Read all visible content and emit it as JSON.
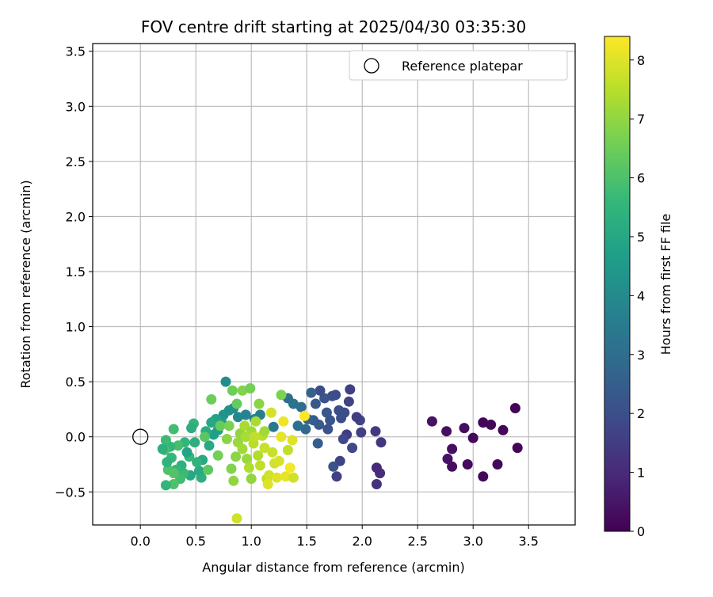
{
  "chart_data": {
    "type": "scatter",
    "title": "FOV centre drift starting at 2025/04/30 03:35:30",
    "xlabel": "Angular distance from reference (arcmin)",
    "ylabel": "Rotation from reference (arcmin)",
    "xlim": [
      -0.43,
      3.92
    ],
    "ylim": [
      -0.8,
      3.57
    ],
    "xticks": [
      "0.0",
      "0.5",
      "1.0",
      "1.5",
      "2.0",
      "2.5",
      "3.0",
      "3.5"
    ],
    "yticks": [
      "−0.5",
      "0.0",
      "0.5",
      "1.0",
      "1.5",
      "2.0",
      "2.5",
      "3.0",
      "3.5"
    ],
    "grid": true,
    "legend": {
      "position": "top-right",
      "label": "Reference platepar"
    },
    "reference_point": {
      "x": 0.0,
      "y": 0.0
    },
    "colorbar": {
      "label": "Hours from first FF file",
      "colormap": "viridis",
      "range": [
        0,
        8.4
      ],
      "ticks": [
        "0",
        "1",
        "2",
        "3",
        "4",
        "5",
        "6",
        "7",
        "8"
      ]
    },
    "points": [
      [
        3.38,
        0.26,
        0.1
      ],
      [
        3.4,
        -0.1,
        0.1
      ],
      [
        3.27,
        0.06,
        0.15
      ],
      [
        3.22,
        -0.25,
        0.2
      ],
      [
        3.16,
        0.11,
        0.15
      ],
      [
        3.09,
        0.13,
        0.1
      ],
      [
        3.09,
        -0.36,
        0.15
      ],
      [
        3.0,
        -0.01,
        0.2
      ],
      [
        2.95,
        -0.25,
        0.25
      ],
      [
        2.92,
        0.08,
        0.3
      ],
      [
        2.81,
        -0.11,
        0.35
      ],
      [
        2.81,
        -0.27,
        0.3
      ],
      [
        2.77,
        -0.2,
        0.4
      ],
      [
        2.76,
        0.05,
        0.35
      ],
      [
        2.63,
        0.14,
        0.4
      ],
      [
        2.17,
        -0.05,
        1.3
      ],
      [
        2.16,
        -0.33,
        1.1
      ],
      [
        2.13,
        -0.28,
        1.0
      ],
      [
        2.12,
        0.05,
        1.4
      ],
      [
        2.13,
        -0.43,
        1.2
      ],
      [
        1.99,
        0.04,
        1.6
      ],
      [
        1.98,
        0.15,
        1.7
      ],
      [
        1.95,
        0.18,
        1.5
      ],
      [
        1.91,
        -0.1,
        1.8
      ],
      [
        1.89,
        0.43,
        1.6
      ],
      [
        1.88,
        0.32,
        1.7
      ],
      [
        1.86,
        0.02,
        1.5
      ],
      [
        1.84,
        0.22,
        1.9
      ],
      [
        1.83,
        -0.02,
        1.8
      ],
      [
        1.81,
        0.17,
        2.0
      ],
      [
        1.8,
        -0.22,
        1.7
      ],
      [
        1.79,
        0.24,
        2.0
      ],
      [
        1.77,
        -0.36,
        1.6
      ],
      [
        1.76,
        0.38,
        1.9
      ],
      [
        1.74,
        -0.27,
        2.1
      ],
      [
        1.73,
        0.37,
        2.0
      ],
      [
        1.71,
        0.15,
        2.2
      ],
      [
        1.69,
        0.07,
        2.1
      ],
      [
        1.68,
        0.22,
        2.3
      ],
      [
        1.66,
        0.35,
        2.2
      ],
      [
        1.62,
        0.42,
        2.0
      ],
      [
        1.61,
        0.11,
        2.4
      ],
      [
        1.6,
        -0.06,
        2.5
      ],
      [
        1.58,
        0.3,
        2.3
      ],
      [
        1.56,
        0.15,
        2.4
      ],
      [
        1.54,
        0.4,
        2.6
      ],
      [
        1.51,
        0.16,
        2.7
      ],
      [
        1.49,
        0.07,
        2.8
      ],
      [
        1.45,
        0.27,
        3.0
      ],
      [
        1.42,
        0.1,
        3.1
      ],
      [
        1.38,
        0.3,
        3.2
      ],
      [
        1.33,
        0.35,
        3.0
      ],
      [
        1.2,
        0.09,
        3.4
      ],
      [
        1.08,
        0.2,
        3.6
      ],
      [
        1.03,
        0.16,
        3.7
      ],
      [
        0.95,
        0.2,
        3.8
      ],
      [
        0.88,
        0.18,
        3.9
      ],
      [
        0.84,
        0.26,
        4.0
      ],
      [
        0.8,
        0.24,
        4.2
      ],
      [
        0.77,
        0.5,
        4.1
      ],
      [
        0.75,
        0.2,
        4.3
      ],
      [
        0.73,
        0.14,
        4.5
      ],
      [
        0.7,
        0.06,
        4.6
      ],
      [
        0.68,
        0.16,
        4.8
      ],
      [
        0.66,
        0.02,
        4.7
      ],
      [
        0.64,
        0.13,
        5.0
      ],
      [
        0.62,
        -0.08,
        5.1
      ],
      [
        0.59,
        0.05,
        5.2
      ],
      [
        0.56,
        -0.21,
        5.0
      ],
      [
        0.55,
        -0.37,
        5.3
      ],
      [
        0.53,
        -0.31,
        5.1
      ],
      [
        0.51,
        -0.23,
        5.4
      ],
      [
        0.49,
        -0.05,
        5.3
      ],
      [
        0.48,
        0.12,
        5.5
      ],
      [
        0.46,
        0.08,
        5.2
      ],
      [
        0.45,
        -0.35,
        5.0
      ],
      [
        0.44,
        -0.18,
        5.6
      ],
      [
        0.42,
        -0.14,
        4.9
      ],
      [
        0.4,
        -0.05,
        5.5
      ],
      [
        0.39,
        -0.33,
        5.7
      ],
      [
        0.37,
        -0.26,
        5.4
      ],
      [
        0.36,
        -0.38,
        5.8
      ],
      [
        0.34,
        -0.08,
        5.9
      ],
      [
        0.32,
        -0.3,
        5.6
      ],
      [
        0.3,
        -0.43,
        6.0
      ],
      [
        0.3,
        0.07,
        5.8
      ],
      [
        0.28,
        -0.19,
        5.6
      ],
      [
        0.27,
        -0.09,
        5.5
      ],
      [
        0.25,
        -0.3,
        6.0
      ],
      [
        0.24,
        -0.23,
        5.4
      ],
      [
        0.23,
        -0.03,
        5.7
      ],
      [
        0.23,
        -0.44,
        5.5
      ],
      [
        0.22,
        -0.12,
        5.9
      ],
      [
        0.2,
        -0.11,
        5.3
      ],
      [
        0.3,
        -0.33,
        6.1
      ],
      [
        0.58,
        0.0,
        6.2
      ],
      [
        0.61,
        -0.3,
        6.3
      ],
      [
        0.64,
        0.34,
        6.5
      ],
      [
        0.7,
        -0.17,
        6.6
      ],
      [
        0.72,
        0.1,
        6.4
      ],
      [
        0.8,
        0.1,
        6.7
      ],
      [
        0.83,
        0.42,
        6.5
      ],
      [
        0.87,
        0.3,
        6.4
      ],
      [
        0.92,
        0.42,
        6.8
      ],
      [
        0.99,
        0.44,
        6.6
      ],
      [
        1.07,
        0.3,
        6.9
      ],
      [
        1.27,
        0.38,
        6.7
      ],
      [
        0.82,
        -0.29,
        6.8
      ],
      [
        0.84,
        -0.4,
        7.0
      ],
      [
        0.86,
        -0.18,
        6.9
      ],
      [
        0.88,
        -0.05,
        7.1
      ],
      [
        0.9,
        0.03,
        7.0
      ],
      [
        0.92,
        -0.11,
        7.2
      ],
      [
        0.94,
        0.1,
        7.3
      ],
      [
        0.96,
        -0.2,
        7.1
      ],
      [
        0.98,
        -0.28,
        7.4
      ],
      [
        1.0,
        0.05,
        7.2
      ],
      [
        1.02,
        -0.06,
        7.5
      ],
      [
        1.04,
        0.14,
        7.3
      ],
      [
        1.06,
        -0.17,
        7.4
      ],
      [
        1.08,
        -0.26,
        7.6
      ],
      [
        1.1,
        0.01,
        7.5
      ],
      [
        1.12,
        -0.1,
        7.7
      ],
      [
        1.14,
        -0.38,
        7.6
      ],
      [
        1.16,
        -0.35,
        7.8
      ],
      [
        1.18,
        0.22,
        7.9
      ],
      [
        1.19,
        -0.14,
        7.7
      ],
      [
        1.21,
        -0.24,
        7.8
      ],
      [
        1.23,
        -0.37,
        8.0
      ],
      [
        1.25,
        -0.22,
        7.9
      ],
      [
        1.27,
        0.0,
        8.1
      ],
      [
        1.29,
        0.14,
        8.2
      ],
      [
        1.31,
        -0.36,
        8.1
      ],
      [
        1.33,
        -0.12,
        7.6
      ],
      [
        1.35,
        -0.28,
        8.3
      ],
      [
        1.37,
        -0.03,
        8.0
      ],
      [
        1.38,
        -0.37,
        7.8
      ],
      [
        1.48,
        0.19,
        8.4
      ],
      [
        0.87,
        -0.74,
        7.8
      ],
      [
        1.15,
        -0.43,
        8.0
      ],
      [
        1.0,
        -0.38,
        7.0
      ],
      [
        0.95,
        0.0,
        7.3
      ],
      [
        1.03,
        0.0,
        7.6
      ],
      [
        1.12,
        0.05,
        7.2
      ],
      [
        0.78,
        -0.02,
        6.9
      ]
    ]
  }
}
